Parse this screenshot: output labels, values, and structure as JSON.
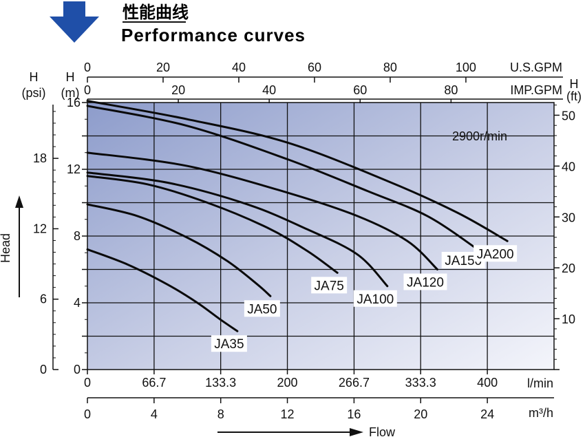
{
  "header": {
    "title_cn": "性能曲线",
    "title_en": "Performance curves",
    "arrow_color": "#1f4fa8"
  },
  "chart_data": {
    "type": "line",
    "speed_label": "2900r/min",
    "x": {
      "unit": "l/min",
      "range": [
        0,
        466.7
      ],
      "ticks": [
        "0",
        "66.7",
        "133.3",
        "200",
        "266.7",
        "333.3",
        "400"
      ],
      "tick_values": [
        0,
        66.7,
        133.3,
        200,
        266.7,
        333.3,
        400
      ]
    },
    "x_m3h": {
      "unit": "m³/h",
      "ticks": [
        "0",
        "4",
        "8",
        "12",
        "16",
        "20",
        "24"
      ],
      "tick_values": [
        0,
        4,
        8,
        12,
        16,
        20,
        24
      ]
    },
    "x_usgpm": {
      "unit": "U.S.GPM",
      "ticks": [
        "0",
        "20",
        "40",
        "60",
        "80",
        "100"
      ],
      "tick_values": [
        0,
        20,
        40,
        60,
        80,
        100
      ]
    },
    "x_impgpm": {
      "unit": "IMP.GPM",
      "ticks": [
        "0",
        "20",
        "40",
        "60",
        "80"
      ],
      "tick_values": [
        0,
        20,
        40,
        60,
        80
      ]
    },
    "y": {
      "label": "H",
      "unit": "(m)",
      "range": [
        0,
        16
      ],
      "ticks": [
        "0",
        "4",
        "8",
        "12",
        "16"
      ],
      "tick_values": [
        0,
        4,
        8,
        12,
        16
      ],
      "minor_values": [
        2,
        6,
        10,
        14
      ]
    },
    "y_psi": {
      "label": "H",
      "unit": "(psi)",
      "ticks": [
        "0",
        "6",
        "12",
        "18"
      ],
      "tick_values": [
        0,
        6,
        12,
        18
      ]
    },
    "y_ft": {
      "label": "H",
      "unit": "(ft)",
      "ticks": [
        "10",
        "20",
        "30",
        "40",
        "50"
      ],
      "tick_values": [
        10,
        20,
        30,
        40,
        50
      ]
    },
    "axis_title_x": "Flow",
    "axis_title_y": "Head",
    "series": [
      {
        "name": "JA35",
        "x": [
          0,
          40,
          80,
          110,
          133,
          150
        ],
        "y": [
          7.2,
          6.3,
          5.1,
          4.0,
          3.0,
          2.3
        ]
      },
      {
        "name": "JA50",
        "x": [
          0,
          50,
          100,
          140,
          170,
          183
        ],
        "y": [
          9.9,
          9.2,
          7.9,
          6.5,
          5.1,
          4.4
        ]
      },
      {
        "name": "JA75",
        "x": [
          0,
          60,
          120,
          180,
          220,
          250
        ],
        "y": [
          11.6,
          11.1,
          10.0,
          8.5,
          7.1,
          5.8
        ]
      },
      {
        "name": "JA100",
        "x": [
          0,
          80,
          160,
          220,
          270,
          300
        ],
        "y": [
          11.8,
          11.2,
          9.9,
          8.4,
          6.9,
          5.0
        ]
      },
      {
        "name": "JA120",
        "x": [
          0,
          100,
          200,
          270,
          320,
          350
        ],
        "y": [
          13.0,
          12.2,
          10.6,
          9.2,
          7.7,
          6.0
        ]
      },
      {
        "name": "JA150",
        "x": [
          0,
          100,
          200,
          280,
          340,
          388
        ],
        "y": [
          15.8,
          14.6,
          12.6,
          10.7,
          9.2,
          7.3
        ]
      },
      {
        "name": "JA200",
        "x": [
          0,
          100,
          200,
          300,
          370,
          420
        ],
        "y": [
          16.1,
          15.0,
          13.6,
          11.3,
          9.4,
          7.7
        ]
      }
    ]
  }
}
